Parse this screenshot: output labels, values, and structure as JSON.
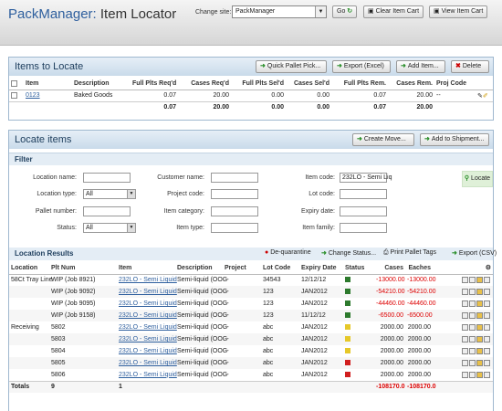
{
  "header": {
    "brand": "PackManager:",
    "page": "Item Locator",
    "change_site_label": "Change site:",
    "site_value": "PackManager",
    "go_label": "Go",
    "clear_cart_label": "Clear Item Cart",
    "view_cart_label": "View Item Cart"
  },
  "items_panel": {
    "title": "Items to Locate",
    "buttons": {
      "quick_pallet": "Quick Pallet Pick...",
      "export": "Export (Excel)",
      "add": "Add Item...",
      "delete": "Delete"
    },
    "columns": [
      "Item",
      "Description",
      "Full Plts Req'd",
      "Cases Req'd",
      "Full Plts Sel'd",
      "Cases Sel'd",
      "Full Plts Rem.",
      "Cases Rem.",
      "Proj Code"
    ],
    "rows": [
      {
        "item": "0123",
        "description": "Baked Goods",
        "full_req": "0.07",
        "cases_req": "20.00",
        "full_sel": "0.00",
        "cases_sel": "0.00",
        "full_rem": "0.07",
        "cases_rem": "20.00",
        "proj": "--"
      }
    ],
    "totals": {
      "full_req": "0.07",
      "cases_req": "20.00",
      "full_sel": "0.00",
      "cases_sel": "0.00",
      "full_rem": "0.07",
      "cases_rem": "20.00"
    }
  },
  "locate_panel": {
    "title": "Locate items",
    "create_move": "Create Move...",
    "add_shipment": "Add to Shipment...",
    "filter_title": "Filter",
    "filter": {
      "location_name": "Location name:",
      "location_type": "Location type:",
      "location_type_value": "All",
      "pallet_number": "Pallet number:",
      "status": "Status:",
      "status_value": "All",
      "customer_name": "Customer name:",
      "project_code": "Project code:",
      "item_category": "Item category:",
      "item_type": "Item type:",
      "item_code": "Item code:",
      "item_code_value": "232LO - Semi Liq",
      "lot_code": "Lot code:",
      "expiry_date": "Expiry date:",
      "item_family": "Item family:",
      "locate": "Locate"
    },
    "results_title": "Location Results",
    "actions": {
      "dequarantine": "De-quarantine",
      "change_status": "Change Status...",
      "print_tags": "Print Pallet Tags",
      "export_csv": "Export (CSV)"
    },
    "columns": [
      "Location",
      "Plt Num",
      "Item",
      "Description",
      "Project",
      "Lot Code",
      "Expiry Date",
      "Status",
      "Cases",
      "Eaches"
    ],
    "rows": [
      {
        "location": "58Ct Tray Line",
        "plt": "WIP (Job 8921)",
        "item": "232LO - Semi Liquid",
        "desc": "Semi-liquid (OOG",
        "project": "--",
        "lot": "34543",
        "expiry": "12/12/12",
        "status_color": "#2d7a2d",
        "cases": "-13000.00",
        "eaches": "-13000.00"
      },
      {
        "location": "",
        "plt": "WIP (Job 9092)",
        "item": "232LO - Semi Liquid",
        "desc": "Semi-liquid (OOG",
        "project": "--",
        "lot": "123",
        "expiry": "JAN2012",
        "status_color": "#2d7a2d",
        "cases": "-54210.00",
        "eaches": "-54210.00"
      },
      {
        "location": "",
        "plt": "WIP (Job 9095)",
        "item": "232LO - Semi Liquid",
        "desc": "Semi-liquid (OOG",
        "project": "--",
        "lot": "123",
        "expiry": "JAN2012",
        "status_color": "#2d7a2d",
        "cases": "-44460.00",
        "eaches": "-44460.00"
      },
      {
        "location": "",
        "plt": "WIP (Job 9158)",
        "item": "232LO - Semi Liquid",
        "desc": "Semi-liquid (OOG",
        "project": "--",
        "lot": "123",
        "expiry": "11/12/12",
        "status_color": "#2d7a2d",
        "cases": "-6500.00",
        "eaches": "-6500.00"
      },
      {
        "location": "Receiving",
        "plt": "5802",
        "item": "232LO - Semi Liquid",
        "desc": "Semi-liquid (OOG",
        "project": "--",
        "lot": "abc",
        "expiry": "JAN2012",
        "status_color": "#e6c829",
        "cases": "2000.00",
        "eaches": "2000.00"
      },
      {
        "location": "",
        "plt": "5803",
        "item": "232LO - Semi Liquid",
        "desc": "Semi-liquid (OOG",
        "project": "--",
        "lot": "abc",
        "expiry": "JAN2012",
        "status_color": "#e6c829",
        "cases": "2000.00",
        "eaches": "2000.00"
      },
      {
        "location": "",
        "plt": "5804",
        "item": "232LO - Semi Liquid",
        "desc": "Semi-liquid (OOG",
        "project": "--",
        "lot": "abc",
        "expiry": "JAN2012",
        "status_color": "#e6c829",
        "cases": "2000.00",
        "eaches": "2000.00"
      },
      {
        "location": "",
        "plt": "5805",
        "item": "232LO - Semi Liquid",
        "desc": "Semi-liquid (OOG",
        "project": "--",
        "lot": "abc",
        "expiry": "JAN2012",
        "status_color": "#d11f1f",
        "cases": "2000.00",
        "eaches": "2000.00"
      },
      {
        "location": "",
        "plt": "5806",
        "item": "232LO - Semi Liquid",
        "desc": "Semi-liquid (OOG",
        "project": "--",
        "lot": "abc",
        "expiry": "JAN2012",
        "status_color": "#d11f1f",
        "cases": "2000.00",
        "eaches": "2000.00"
      }
    ],
    "totals": {
      "label": "Totals",
      "plt": "9",
      "item": "1",
      "cases": "-108170.0",
      "eaches": "-108170.0"
    }
  }
}
